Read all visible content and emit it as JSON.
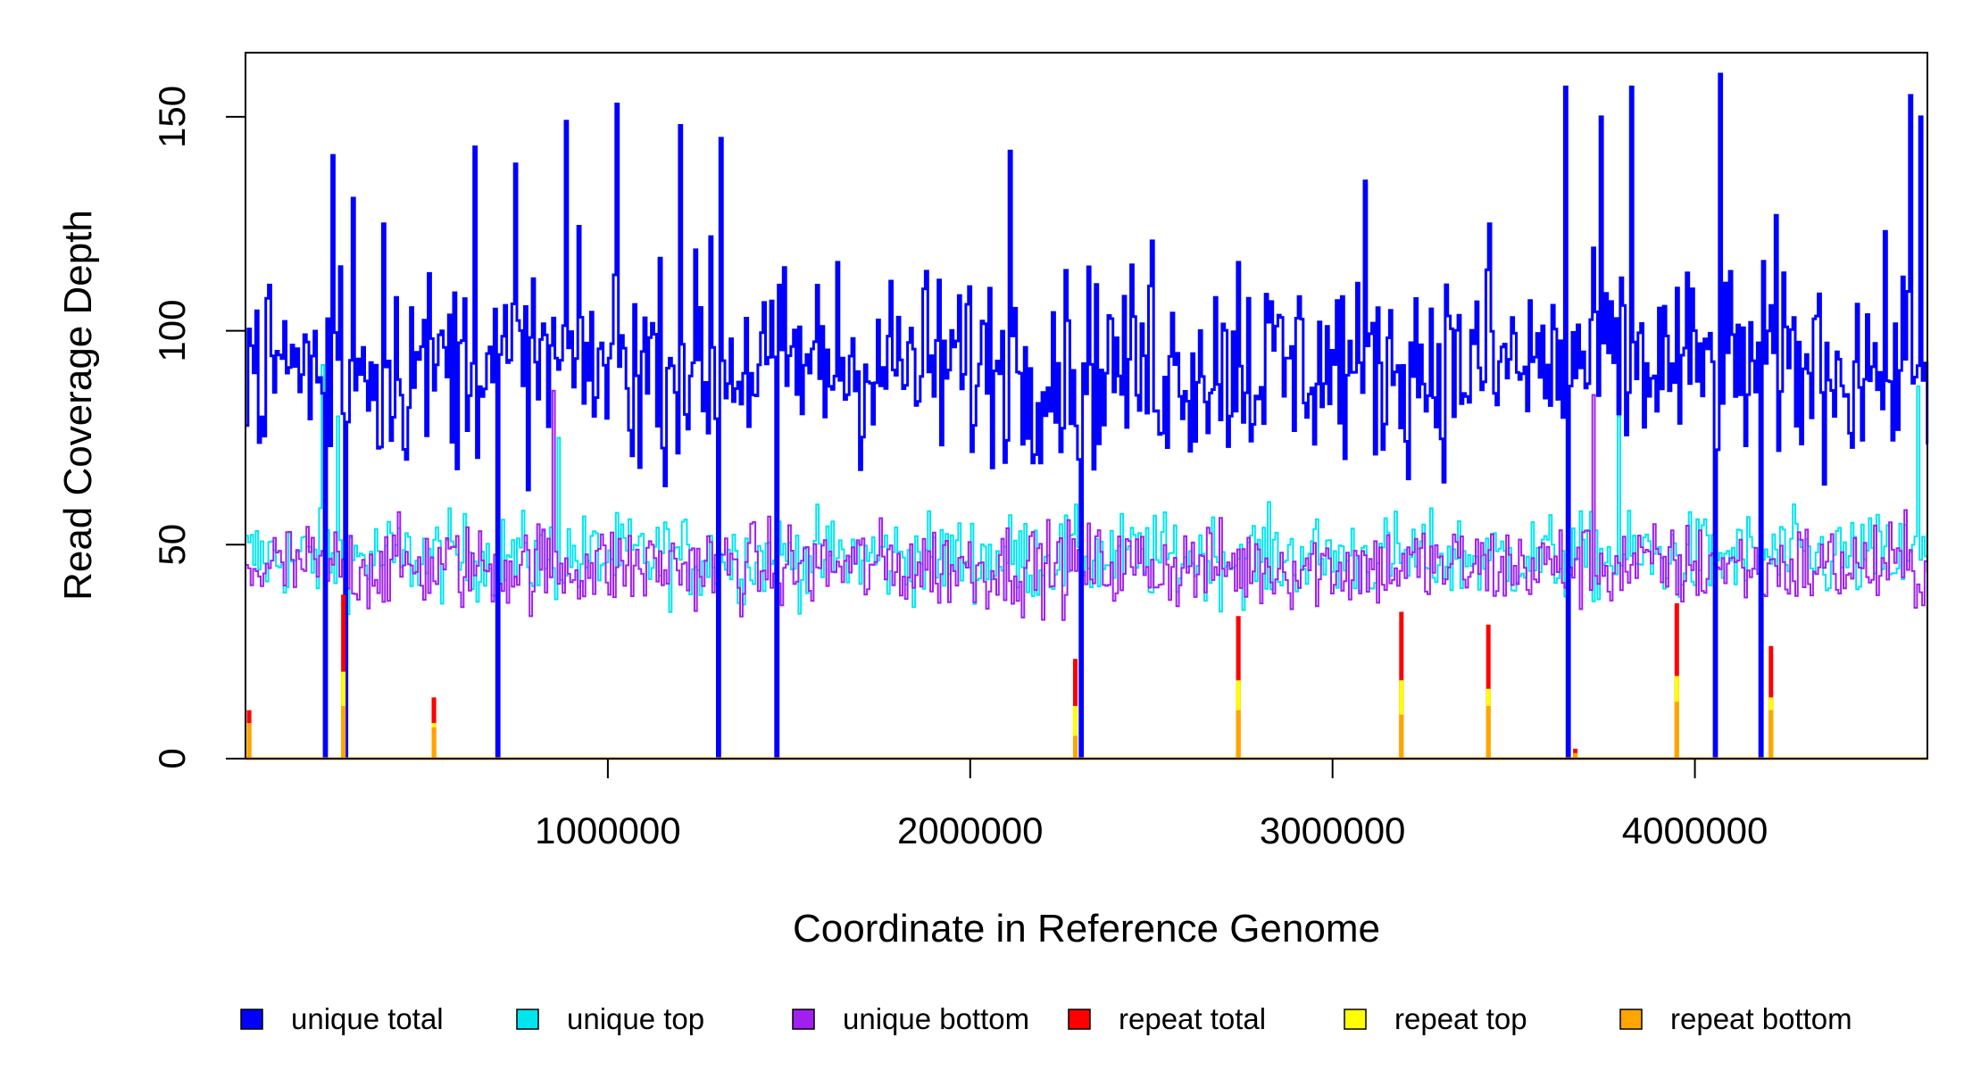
{
  "chart_data": {
    "type": "line",
    "title": "",
    "xlabel": "Coordinate in Reference Genome",
    "ylabel": "Read Coverage Depth",
    "xlim": [
      0,
      4641652
    ],
    "ylim": [
      0,
      165
    ],
    "x_ticks": [
      1000000,
      2000000,
      3000000,
      4000000
    ],
    "x_tick_labels": [
      "1000000",
      "2000000",
      "3000000",
      "4000000"
    ],
    "y_ticks": [
      0,
      50,
      100,
      150
    ],
    "y_tick_labels": [
      "0",
      "50",
      "100",
      "150"
    ],
    "grid": false,
    "legend_position": "bottom",
    "series": [
      {
        "name": "unique total",
        "color": "#0000ff",
        "mean": 92,
        "spread": 22,
        "peaks": [
          [
            240000,
            141
          ],
          [
            260000,
            115
          ],
          [
            295000,
            131
          ],
          [
            380000,
            125
          ],
          [
            630000,
            143
          ],
          [
            740000,
            139
          ],
          [
            885000,
            149
          ],
          [
            1020000,
            153
          ],
          [
            1200000,
            148
          ],
          [
            1310000,
            145
          ],
          [
            1280000,
            122
          ],
          [
            1630000,
            116
          ],
          [
            2110000,
            142
          ],
          [
            2300000,
            125
          ],
          [
            2500000,
            121
          ],
          [
            2740000,
            116
          ],
          [
            3090000,
            135
          ],
          [
            3430000,
            125
          ],
          [
            3640000,
            157
          ],
          [
            3740000,
            150
          ],
          [
            3820000,
            157
          ],
          [
            4070000,
            160
          ],
          [
            4220000,
            127
          ],
          [
            4590000,
            155
          ],
          [
            4620000,
            150
          ]
        ],
        "drops": [
          220000,
          270000,
          690000,
          1300000,
          1460000,
          2300000,
          3650000,
          4050000,
          4180000
        ]
      },
      {
        "name": "unique top",
        "color": "#00e5ee",
        "mean": 47,
        "spread": 10,
        "peaks": [
          [
            210000,
            92
          ],
          [
            250000,
            80
          ],
          [
            860000,
            75
          ],
          [
            3790000,
            80
          ],
          [
            4610000,
            87
          ]
        ],
        "drops": [
          220000,
          270000,
          690000,
          1300000,
          1460000,
          2300000,
          3650000,
          4050000,
          4180000
        ]
      },
      {
        "name": "unique bottom",
        "color": "#a020f0",
        "mean": 45,
        "spread": 10,
        "peaks": [
          [
            850000,
            86
          ],
          [
            3720000,
            85
          ]
        ],
        "drops": [
          220000,
          270000,
          690000,
          1300000,
          1460000,
          2300000,
          3650000,
          4050000,
          4180000
        ]
      },
      {
        "name": "repeat total",
        "color": "#ff0000",
        "spikes": [
          [
            10000,
            11
          ],
          [
            270000,
            38
          ],
          [
            520000,
            14
          ],
          [
            2290000,
            23
          ],
          [
            2740000,
            33
          ],
          [
            3190000,
            34
          ],
          [
            3430000,
            31
          ],
          [
            3670000,
            2
          ],
          [
            3950000,
            36
          ],
          [
            4210000,
            26
          ]
        ]
      },
      {
        "name": "repeat top",
        "color": "#ffff00",
        "spikes": [
          [
            10000,
            6
          ],
          [
            270000,
            20
          ],
          [
            520000,
            8
          ],
          [
            2290000,
            12
          ],
          [
            2740000,
            18
          ],
          [
            3190000,
            18
          ],
          [
            3430000,
            16
          ],
          [
            3950000,
            19
          ],
          [
            4210000,
            14
          ]
        ]
      },
      {
        "name": "repeat bottom",
        "color": "#ffa500",
        "spikes": [
          [
            10000,
            8
          ],
          [
            270000,
            12
          ],
          [
            520000,
            7
          ],
          [
            2290000,
            5
          ],
          [
            2740000,
            11
          ],
          [
            3190000,
            10
          ],
          [
            3430000,
            12
          ],
          [
            3670000,
            1
          ],
          [
            3950000,
            13
          ],
          [
            4210000,
            11
          ]
        ]
      }
    ]
  }
}
